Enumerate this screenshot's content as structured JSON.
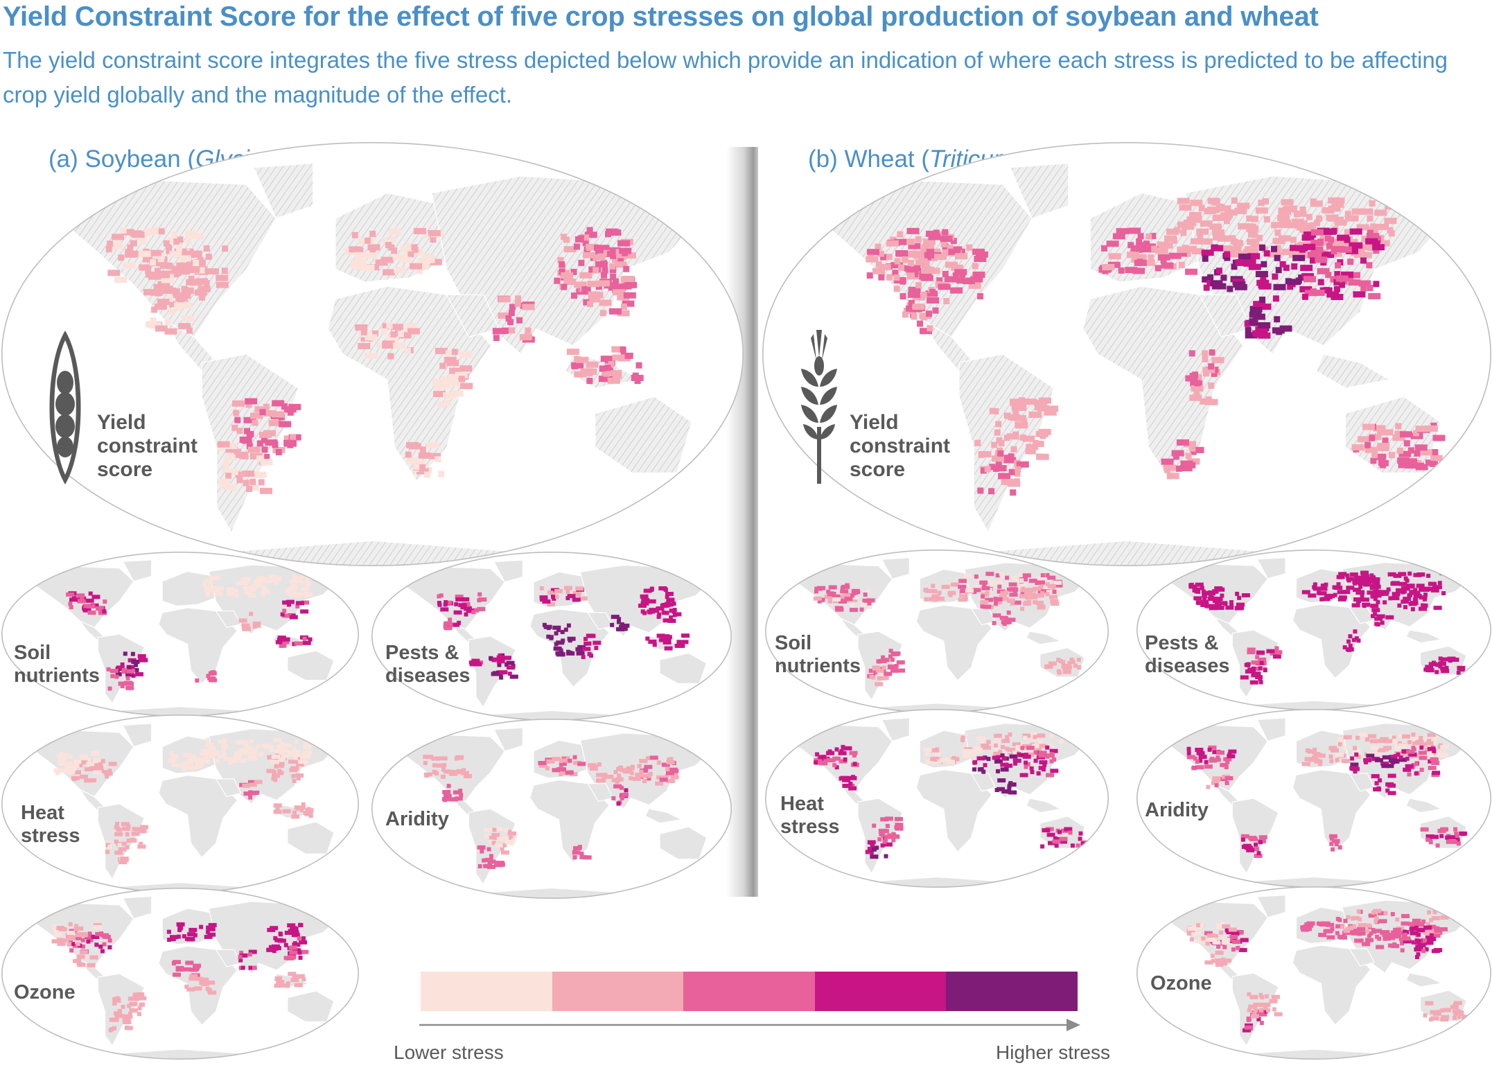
{
  "figure": {
    "title": "Yield Constraint Score for the effect of five crop stresses on global production of soybean and wheat",
    "subtitle": "The yield constraint score integrates the five stress depicted below which provide an indication of where each stress is predicted to be affecting crop yield globally and the magnitude of the effect."
  },
  "panels": {
    "a": {
      "prefix": "(a) Soybean (",
      "crop_sci": "Glycine max",
      "suffix": ")",
      "icon": "soybean-pod-icon",
      "main_label_lines": [
        "Yield",
        "constraint",
        "score"
      ],
      "small_maps": [
        {
          "label_lines": [
            "Soil",
            "nutrients"
          ]
        },
        {
          "label_lines": [
            "Pests &",
            "diseases"
          ]
        },
        {
          "label_lines": [
            "Heat",
            "stress"
          ]
        },
        {
          "label_lines": [
            "Aridity"
          ]
        },
        {
          "label_lines": [
            "Ozone"
          ]
        }
      ]
    },
    "b": {
      "prefix": "(b) Wheat (",
      "crop_sci": "Triticum aestivum",
      "suffix": ")",
      "icon": "wheat-ear-icon",
      "main_label_lines": [
        "Yield",
        "constraint",
        "score"
      ],
      "small_maps": [
        {
          "label_lines": [
            "Soil",
            "nutrients"
          ]
        },
        {
          "label_lines": [
            "Pests &",
            "diseases"
          ]
        },
        {
          "label_lines": [
            "Heat",
            "stress"
          ]
        },
        {
          "label_lines": [
            "Aridity"
          ]
        },
        {
          "label_lines": [
            "Ozone"
          ]
        }
      ]
    }
  },
  "legend": {
    "low_label": "Lower stress",
    "high_label": "Higher stress",
    "colors": [
      "#fbe3dc",
      "#f4aab5",
      "#e8619b",
      "#c71585",
      "#7e1c78"
    ]
  },
  "colors": {
    "title": "#4a8fc8",
    "land": "#e4e4e4",
    "land_hatched": "#eeeeee",
    "map_outline": "#bdbdbd",
    "label": "#595959"
  }
}
